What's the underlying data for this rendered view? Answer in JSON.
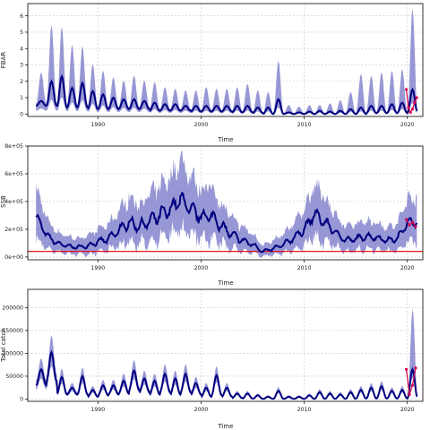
{
  "colors": {
    "median_line": "#00007f",
    "ci_band": "#8c8cd0",
    "recent_points": "#d4004f",
    "reference_line": "#e00000",
    "grid": "#c8c8c8",
    "frame": "#000000"
  },
  "chart_data": [
    {
      "type": "line",
      "ylabel": "FBAR",
      "xlabel": "Time",
      "xlim": [
        1983.2,
        2021.5
      ],
      "ylim": [
        -0.15,
        6.75
      ],
      "xticks": [
        1990,
        2000,
        2010,
        2020
      ],
      "xtick_labels": [
        "1990",
        "2000",
        "2010",
        "2020"
      ],
      "yticks": [
        0,
        1,
        2,
        3,
        4,
        5,
        6
      ],
      "ytick_labels": [
        "0",
        "1",
        "2",
        "3",
        "4",
        "5",
        "6"
      ],
      "grid": true,
      "seasonal": true,
      "series": [
        {
          "role": "median",
          "x": [
            1984,
            1985,
            1986,
            1987,
            1988,
            1989,
            1990,
            1991,
            1992,
            1993,
            1994,
            1995,
            1996,
            1997,
            1998,
            1999,
            2000,
            2001,
            2002,
            2003,
            2004,
            2005,
            2006,
            2007,
            2008,
            2009,
            2010,
            2011,
            2012,
            2013,
            2014,
            2015,
            2016,
            2017,
            2018,
            2019,
            2020
          ],
          "peak": [
            0.8,
            2.0,
            2.3,
            1.6,
            1.9,
            1.4,
            1.2,
            1.0,
            0.9,
            0.9,
            0.8,
            0.7,
            0.6,
            0.6,
            0.5,
            0.5,
            0.5,
            0.5,
            0.5,
            0.5,
            0.5,
            0.4,
            0.4,
            0.9,
            0.1,
            0.1,
            0.15,
            0.2,
            0.15,
            0.2,
            0.3,
            0.4,
            0.5,
            0.5,
            0.6,
            0.7,
            1.5
          ],
          "trough": [
            0.5,
            0.5,
            0.4,
            0.4,
            0.4,
            0.3,
            0.3,
            0.3,
            0.3,
            0.3,
            0.3,
            0.2,
            0.2,
            0.2,
            0.2,
            0.15,
            0.15,
            0.15,
            0.15,
            0.1,
            0.1,
            0.05,
            0.0,
            0.0,
            0.0,
            0.0,
            0.0,
            0.0,
            0.0,
            0.0,
            0.0,
            0.0,
            0.05,
            0.05,
            0.05,
            0.05,
            0.1
          ]
        },
        {
          "role": "upper_ci",
          "x": [
            1984,
            1985,
            1986,
            1987,
            1988,
            1989,
            1990,
            1991,
            1992,
            1993,
            1994,
            1995,
            1996,
            1997,
            1998,
            1999,
            2000,
            2001,
            2002,
            2003,
            2004,
            2005,
            2006,
            2007,
            2008,
            2009,
            2010,
            2011,
            2012,
            2013,
            2014,
            2015,
            2016,
            2017,
            2018,
            2019,
            2020
          ],
          "peak": [
            2.5,
            5.4,
            5.3,
            4.2,
            4.1,
            3.0,
            2.6,
            2.2,
            2.0,
            2.3,
            2.0,
            1.9,
            1.6,
            1.5,
            1.4,
            1.4,
            1.6,
            1.5,
            1.5,
            1.6,
            1.8,
            1.4,
            1.3,
            3.2,
            0.5,
            0.4,
            0.5,
            0.5,
            0.6,
            0.8,
            1.3,
            2.4,
            2.3,
            2.5,
            2.6,
            2.7,
            6.4
          ]
        },
        {
          "role": "lower_ci",
          "x": [
            1984,
            2020
          ],
          "trough": [
            0.2,
            0.0
          ]
        },
        {
          "role": "recent",
          "x": [
            2019.9,
            2020.1,
            2020.3,
            2020.5,
            2020.7,
            2020.9
          ],
          "y": [
            1.5,
            0.4,
            0.1,
            0.3,
            0.7,
            1.0
          ]
        }
      ]
    },
    {
      "type": "line",
      "ylabel": "SSB",
      "xlabel": "Time",
      "xlim": [
        1983.2,
        2021.5
      ],
      "ylim": [
        -20000,
        800000
      ],
      "xticks": [
        1990,
        2000,
        2010,
        2020
      ],
      "xtick_labels": [
        "1990",
        "2000",
        "2010",
        "2020"
      ],
      "yticks": [
        0,
        200000,
        400000,
        600000,
        800000
      ],
      "ytick_labels": [
        "0e+00",
        "2e+05",
        "4e+05",
        "6e+05",
        "8e+05"
      ],
      "grid": true,
      "reference_line_y": 40000,
      "series": [
        {
          "role": "median",
          "x": [
            1984,
            1985,
            1986,
            1987,
            1988,
            1989,
            1990,
            1991,
            1992,
            1993,
            1994,
            1995,
            1996,
            1997,
            1998,
            1999,
            2000,
            2001,
            2002,
            2003,
            2004,
            2005,
            2006,
            2007,
            2008,
            2009,
            2010,
            2011,
            2012,
            2013,
            2014,
            2015,
            2016,
            2017,
            2018,
            2019,
            2020
          ],
          "y": [
            300000,
            160000,
            100000,
            80000,
            70000,
            80000,
            110000,
            130000,
            190000,
            250000,
            220000,
            260000,
            300000,
            340000,
            420000,
            340000,
            290000,
            300000,
            220000,
            160000,
            120000,
            90000,
            40000,
            60000,
            90000,
            140000,
            200000,
            310000,
            250000,
            180000,
            120000,
            130000,
            150000,
            140000,
            120000,
            130000,
            250000
          ],
          "amplitude": [
            40000,
            30000,
            25000,
            20000,
            20000,
            25000,
            30000,
            40000,
            50000,
            60000,
            55000,
            70000,
            80000,
            80000,
            90000,
            80000,
            70000,
            70000,
            55000,
            45000,
            35000,
            25000,
            15000,
            20000,
            25000,
            35000,
            45000,
            60000,
            55000,
            40000,
            30000,
            35000,
            35000,
            30000,
            30000,
            30000,
            40000
          ]
        },
        {
          "role": "recent",
          "x": [
            2019.9,
            2020.2,
            2020.5,
            2020.8
          ],
          "y": [
            270000,
            230000,
            250000,
            220000
          ]
        }
      ]
    },
    {
      "type": "line",
      "ylabel": "Total catch",
      "xlabel": "Time",
      "xlim": [
        1983.2,
        2021.5
      ],
      "ylim": [
        -5000,
        240000
      ],
      "xticks": [
        1990,
        2000,
        2010,
        2020
      ],
      "xtick_labels": [
        "1990",
        "2000",
        "2010",
        "2020"
      ],
      "yticks": [
        0,
        50000,
        100000,
        150000,
        200000
      ],
      "ytick_labels": [
        "0",
        "50000",
        "100000",
        "150000",
        "200000"
      ],
      "grid": true,
      "seasonal": true,
      "series": [
        {
          "role": "median",
          "x": [
            1984,
            1985,
            1986,
            1987,
            1988,
            1989,
            1990,
            1991,
            1992,
            1993,
            1994,
            1995,
            1996,
            1997,
            1998,
            1999,
            2000,
            2001,
            2002,
            2003,
            2004,
            2005,
            2006,
            2007,
            2008,
            2009,
            2010,
            2011,
            2012,
            2013,
            2014,
            2015,
            2016,
            2017,
            2018,
            2019,
            2020
          ],
          "peak": [
            65000,
            102000,
            48000,
            25000,
            50000,
            20000,
            30000,
            30000,
            40000,
            62000,
            45000,
            40000,
            55000,
            45000,
            55000,
            35000,
            25000,
            52000,
            25000,
            12000,
            12000,
            8000,
            5000,
            18000,
            5000,
            5000,
            8000,
            15000,
            12000,
            10000,
            15000,
            20000,
            25000,
            28000,
            18000,
            20000,
            65000
          ],
          "trough": [
            30000,
            40000,
            10000,
            10000,
            10000,
            5000,
            8000,
            10000,
            12000,
            20000,
            15000,
            10000,
            15000,
            10000,
            15000,
            10000,
            5000,
            8000,
            5000,
            2000,
            1000,
            500,
            200,
            500,
            200,
            200,
            300,
            500,
            500,
            500,
            500,
            1000,
            1000,
            1000,
            1000,
            1000,
            2000
          ]
        },
        {
          "role": "upper_ci",
          "x": [
            2019.9,
            2020.9
          ],
          "y": [
            170000,
            215000
          ]
        },
        {
          "role": "recent",
          "x": [
            2019.9,
            2020.2,
            2020.5,
            2020.8
          ],
          "y": [
            65000,
            10000,
            30000,
            68000
          ]
        }
      ]
    }
  ]
}
